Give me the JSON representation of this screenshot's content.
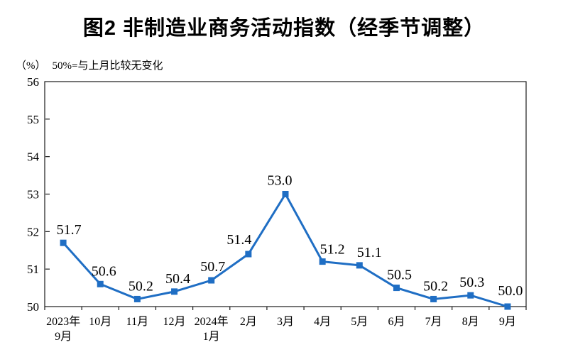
{
  "chart_data": {
    "type": "line",
    "title": "图2 非制造业商务活动指数（经季节调整）",
    "unit": "（%）",
    "subtitle": "50%=与上月比较无变化",
    "categories": [
      "2023年\n9月",
      "10月",
      "11月",
      "12月",
      "2024年\n1月",
      "2月",
      "3月",
      "4月",
      "5月",
      "6月",
      "7月",
      "8月",
      "9月"
    ],
    "values": [
      51.7,
      50.6,
      50.2,
      50.4,
      50.7,
      51.4,
      53.0,
      51.2,
      51.1,
      50.5,
      50.2,
      50.3,
      50.0
    ],
    "ylim": [
      50,
      56
    ],
    "ytick_step": 1,
    "yticks": [
      50,
      51,
      52,
      53,
      54,
      55,
      56
    ],
    "line_color": "#1f6ec4",
    "axis_color": "#1a1a1a",
    "label_color": "#000000",
    "marker": "square",
    "grid": false,
    "legend": "none",
    "xlabel": "",
    "ylabel": "%"
  }
}
